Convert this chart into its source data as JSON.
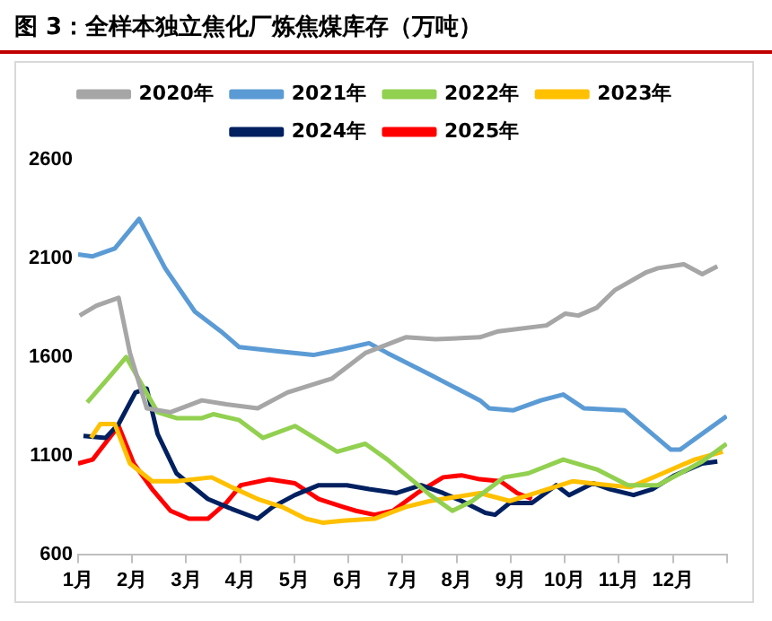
{
  "chart_data": {
    "type": "line",
    "title": "图 3：全样本独立焦化厂炼焦煤库存（万吨）",
    "xlim": [
      1,
      13
    ],
    "xticks": [
      {
        "value": 1,
        "label": "1月"
      },
      {
        "value": 2,
        "label": "2月"
      },
      {
        "value": 3,
        "label": "3月"
      },
      {
        "value": 4,
        "label": "4月"
      },
      {
        "value": 5,
        "label": "5月"
      },
      {
        "value": 6,
        "label": "6月"
      },
      {
        "value": 7,
        "label": "7月"
      },
      {
        "value": 8,
        "label": "8月"
      },
      {
        "value": 9,
        "label": "9月"
      },
      {
        "value": 10,
        "label": "10月"
      },
      {
        "value": 11,
        "label": "11月"
      },
      {
        "value": 12,
        "label": "12月"
      },
      {
        "value": 13,
        "label": null
      }
    ],
    "ylim": [
      600,
      2600
    ],
    "yticks": [
      600,
      1100,
      1600,
      2100,
      2600
    ],
    "grid": false,
    "legend": "top",
    "marker": "none",
    "line_style": "solid",
    "series": [
      {
        "name": "2020年",
        "color": "#a6a6a6",
        "x": [
          1.03,
          1.34,
          1.75,
          1.96,
          2.27,
          2.71,
          3.29,
          3.74,
          4.32,
          4.87,
          5.69,
          6.31,
          7.06,
          7.61,
          8.43,
          8.77,
          9.66,
          10.01,
          10.25,
          10.59,
          10.93,
          11.51,
          11.72,
          12.2,
          12.54,
          12.82
        ],
        "values": [
          1810,
          1860,
          1900,
          1620,
          1340,
          1320,
          1380,
          1360,
          1340,
          1420,
          1490,
          1620,
          1700,
          1690,
          1700,
          1730,
          1760,
          1820,
          1810,
          1850,
          1940,
          2030,
          2050,
          2070,
          2020,
          2060
        ]
      },
      {
        "name": "2021年",
        "color": "#5b9bd5",
        "x": [
          1,
          1.27,
          1.68,
          2.13,
          2.61,
          3.16,
          3.64,
          3.98,
          4.66,
          5.35,
          5.9,
          6.38,
          6.72,
          7.51,
          8.43,
          8.6,
          9.05,
          9.56,
          9.97,
          10.35,
          11.1,
          11.96,
          12.13,
          12.99
        ],
        "values": [
          2120,
          2110,
          2150,
          2300,
          2050,
          1830,
          1730,
          1650,
          1630,
          1610,
          1640,
          1670,
          1620,
          1510,
          1380,
          1340,
          1330,
          1380,
          1410,
          1340,
          1330,
          1130,
          1130,
          1300
        ]
      },
      {
        "name": "2022年",
        "color": "#92d050",
        "x": [
          1.17,
          1.58,
          1.89,
          2.2,
          2.47,
          2.82,
          3.29,
          3.5,
          3.98,
          4.42,
          5.01,
          5.79,
          6.31,
          6.72,
          7.51,
          7.92,
          8.29,
          8.88,
          9.32,
          9.97,
          10.59,
          11.17,
          11.72,
          12.54,
          12.99
        ],
        "values": [
          1370,
          1500,
          1600,
          1450,
          1320,
          1290,
          1290,
          1310,
          1280,
          1190,
          1250,
          1120,
          1160,
          1080,
          900,
          820,
          870,
          990,
          1010,
          1080,
          1030,
          950,
          950,
          1070,
          1160
        ]
      },
      {
        "name": "2023年",
        "color": "#ffc000",
        "x": [
          1.24,
          1.41,
          1.68,
          1.96,
          2.37,
          2.82,
          3.47,
          3.84,
          4.32,
          4.77,
          5.21,
          5.52,
          5.9,
          6.48,
          7.06,
          7.51,
          8.43,
          8.98,
          9.46,
          10.14,
          10.83,
          11.21,
          11.72,
          12.4,
          12.92
        ],
        "values": [
          1190,
          1260,
          1260,
          1060,
          970,
          970,
          990,
          940,
          880,
          840,
          780,
          760,
          770,
          780,
          840,
          870,
          910,
          870,
          910,
          970,
          950,
          940,
          1000,
          1080,
          1120
        ]
      },
      {
        "name": "2024年",
        "color": "#002060",
        "x": [
          1.1,
          1.51,
          1.75,
          2.06,
          2.27,
          2.47,
          2.82,
          3.4,
          3.84,
          4.32,
          4.6,
          5.01,
          5.45,
          5.97,
          6.38,
          6.89,
          7.34,
          7.75,
          8.09,
          8.53,
          8.71,
          8.98,
          9.39,
          9.84,
          10.08,
          10.52,
          10.83,
          11.27,
          11.62,
          12.03,
          12.54,
          12.82
        ],
        "values": [
          1200,
          1190,
          1260,
          1420,
          1440,
          1210,
          1010,
          880,
          830,
          780,
          840,
          900,
          950,
          950,
          930,
          910,
          950,
          910,
          870,
          810,
          800,
          860,
          860,
          950,
          900,
          960,
          930,
          900,
          930,
          1000,
          1060,
          1070
        ]
      },
      {
        "name": "2025年",
        "color": "#ff0000",
        "x": [
          1,
          1.27,
          1.75,
          2.03,
          2.37,
          2.71,
          3.05,
          3.4,
          3.74,
          4.01,
          4.53,
          5.01,
          5.45,
          5.9,
          6.14,
          6.48,
          6.82,
          7.27,
          7.75,
          8.09,
          8.43,
          8.81,
          9.12,
          9.39
        ],
        "values": [
          1060,
          1080,
          1250,
          1060,
          930,
          820,
          780,
          780,
          860,
          950,
          980,
          960,
          880,
          840,
          820,
          800,
          820,
          910,
          990,
          1000,
          980,
          970,
          910,
          880
        ]
      }
    ]
  }
}
